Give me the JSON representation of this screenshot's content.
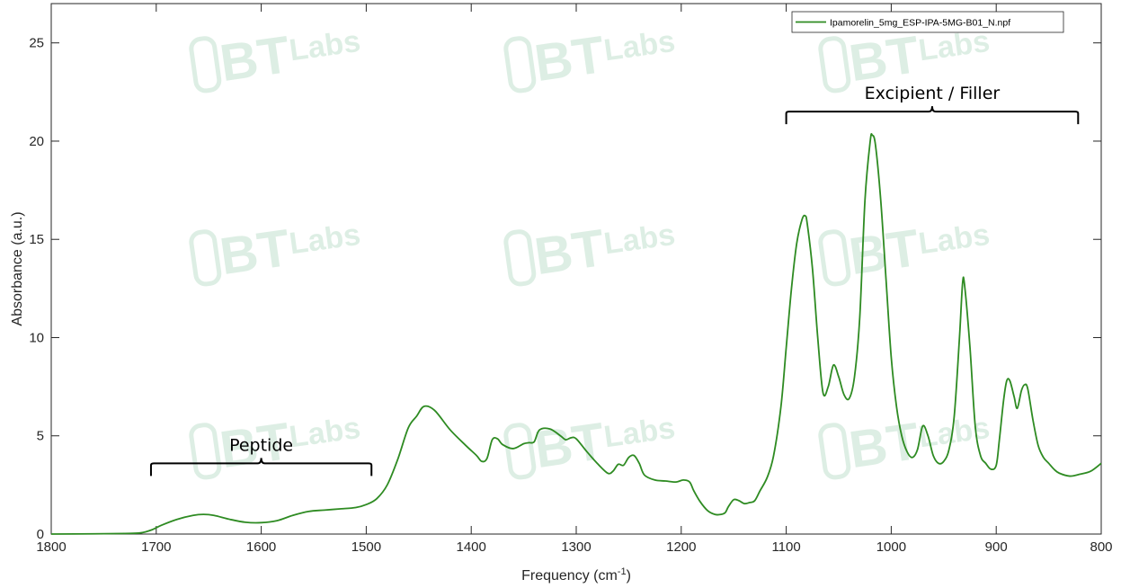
{
  "chart_data": {
    "type": "line",
    "xlabel": "Frequency (cm",
    "xlabel_sup": "-1",
    "xlabel_close": ")",
    "ylabel": "Absorbance (a.u.)",
    "xlim": [
      1800,
      800
    ],
    "ylim": [
      0,
      27
    ],
    "x_reversed": true,
    "x_ticks": [
      1800,
      1700,
      1600,
      1500,
      1400,
      1300,
      1200,
      1100,
      1000,
      900,
      800
    ],
    "y_ticks": [
      0,
      5,
      10,
      15,
      20,
      25
    ],
    "grid": false,
    "legend_placement": "top-right",
    "series": [
      {
        "name": "Ipamorelin_5mg_ESP-IPA-5MG-B01_N.npf",
        "color": "#2e8b22",
        "x": [
          1800,
          1760,
          1730,
          1715,
          1705,
          1695,
          1680,
          1665,
          1655,
          1645,
          1630,
          1615,
          1600,
          1585,
          1570,
          1555,
          1540,
          1525,
          1510,
          1500,
          1490,
          1480,
          1470,
          1460,
          1452,
          1445,
          1435,
          1420,
          1405,
          1395,
          1390,
          1385,
          1380,
          1375,
          1370,
          1360,
          1350,
          1345,
          1340,
          1335,
          1325,
          1315,
          1310,
          1305,
          1300,
          1290,
          1280,
          1270,
          1265,
          1260,
          1255,
          1250,
          1245,
          1240,
          1235,
          1225,
          1215,
          1205,
          1198,
          1192,
          1188,
          1182,
          1175,
          1168,
          1162,
          1158,
          1155,
          1150,
          1145,
          1140,
          1135,
          1130,
          1125,
          1118,
          1112,
          1105,
          1100,
          1095,
          1090,
          1085,
          1082,
          1080,
          1075,
          1070,
          1065,
          1060,
          1055,
          1050,
          1045,
          1040,
          1035,
          1030,
          1025,
          1020,
          1018,
          1015,
          1010,
          1005,
          1000,
          995,
          990,
          985,
          980,
          975,
          970,
          965,
          960,
          955,
          950,
          945,
          940,
          935,
          932,
          930,
          925,
          920,
          915,
          910,
          905,
          900,
          897,
          893,
          890,
          887,
          883,
          880,
          876,
          873,
          870,
          865,
          860,
          855,
          850,
          845,
          840,
          830,
          820,
          810,
          800
        ],
        "y": [
          0,
          0.01,
          0.03,
          0.06,
          0.2,
          0.45,
          0.75,
          0.95,
          1.0,
          0.95,
          0.75,
          0.6,
          0.58,
          0.68,
          0.95,
          1.15,
          1.22,
          1.28,
          1.35,
          1.5,
          1.8,
          2.5,
          3.8,
          5.4,
          6.0,
          6.5,
          6.3,
          5.3,
          4.5,
          4.0,
          3.7,
          3.85,
          4.8,
          4.85,
          4.55,
          4.35,
          4.6,
          4.65,
          4.7,
          5.3,
          5.35,
          5.0,
          4.8,
          4.9,
          4.85,
          4.2,
          3.6,
          3.1,
          3.2,
          3.55,
          3.5,
          3.9,
          4.0,
          3.6,
          3.0,
          2.75,
          2.7,
          2.65,
          2.75,
          2.65,
          2.2,
          1.65,
          1.2,
          1.0,
          1.0,
          1.1,
          1.4,
          1.75,
          1.7,
          1.55,
          1.6,
          1.7,
          2.2,
          2.9,
          4.0,
          6.5,
          9.5,
          12.5,
          14.8,
          16.0,
          16.2,
          15.8,
          13.5,
          10.0,
          7.2,
          7.5,
          8.6,
          8.0,
          7.1,
          6.9,
          8.0,
          11.0,
          17.0,
          20.0,
          20.3,
          19.8,
          17.0,
          13.0,
          9.0,
          6.5,
          5.0,
          4.2,
          3.9,
          4.3,
          5.5,
          5.0,
          4.0,
          3.6,
          3.7,
          4.3,
          6.0,
          10.0,
          12.8,
          12.6,
          9.5,
          5.5,
          4.0,
          3.6,
          3.3,
          3.5,
          4.8,
          6.8,
          7.8,
          7.8,
          7.0,
          6.4,
          7.3,
          7.6,
          7.4,
          5.8,
          4.5,
          3.9,
          3.6,
          3.3,
          3.1,
          2.95,
          3.05,
          3.2,
          3.6
        ]
      }
    ],
    "annotations": [
      {
        "text": "Peptide",
        "from": 1705,
        "to": 1495,
        "level": 3.6
      },
      {
        "text": "Excipient / Filler",
        "from": 1100,
        "to": 822,
        "level": 21.5
      }
    ]
  },
  "watermark": {
    "text_bt": "BT",
    "text_labs": "Labs",
    "color": "#d8ece0"
  }
}
